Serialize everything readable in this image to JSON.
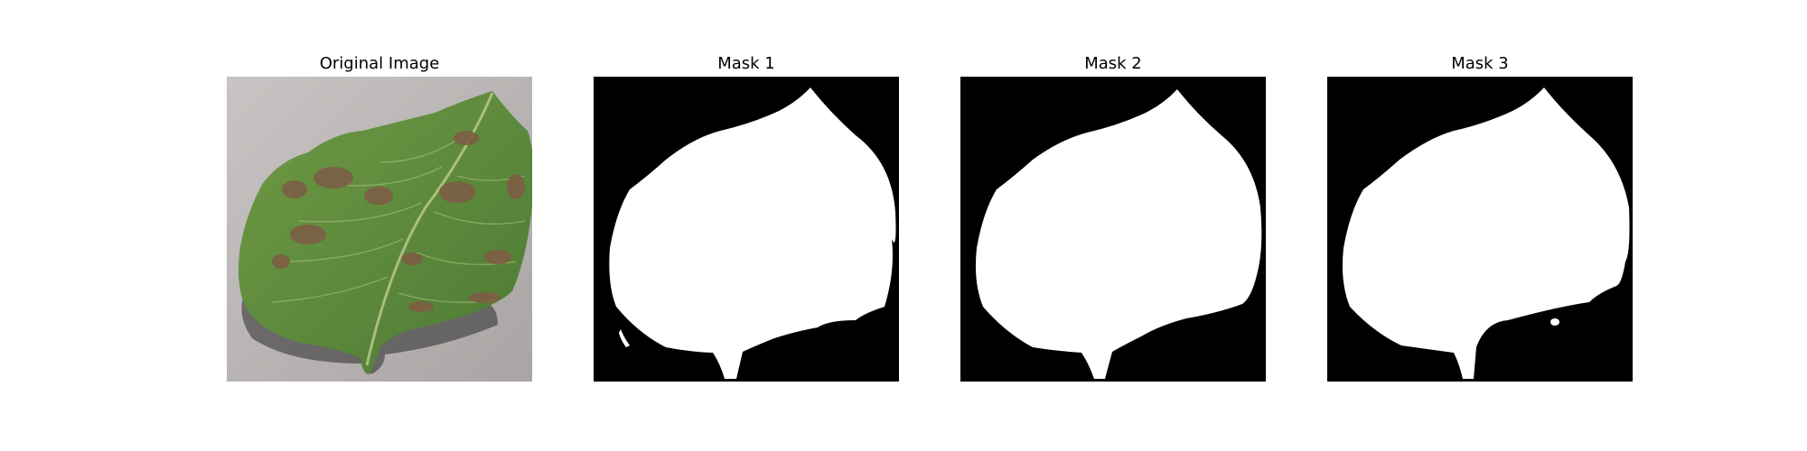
{
  "figure": {
    "panels": [
      {
        "title": "Original Image"
      },
      {
        "title": "Mask 1"
      },
      {
        "title": "Mask 2"
      },
      {
        "title": "Mask 3"
      }
    ]
  },
  "colors": {
    "background": "#ffffff",
    "mask_background": "#000000",
    "mask_foreground": "#ffffff",
    "leaf_green": "#5e8a3c",
    "leaf_lesion": "#7a5b43",
    "surface_gray": "#b9b5b4"
  }
}
